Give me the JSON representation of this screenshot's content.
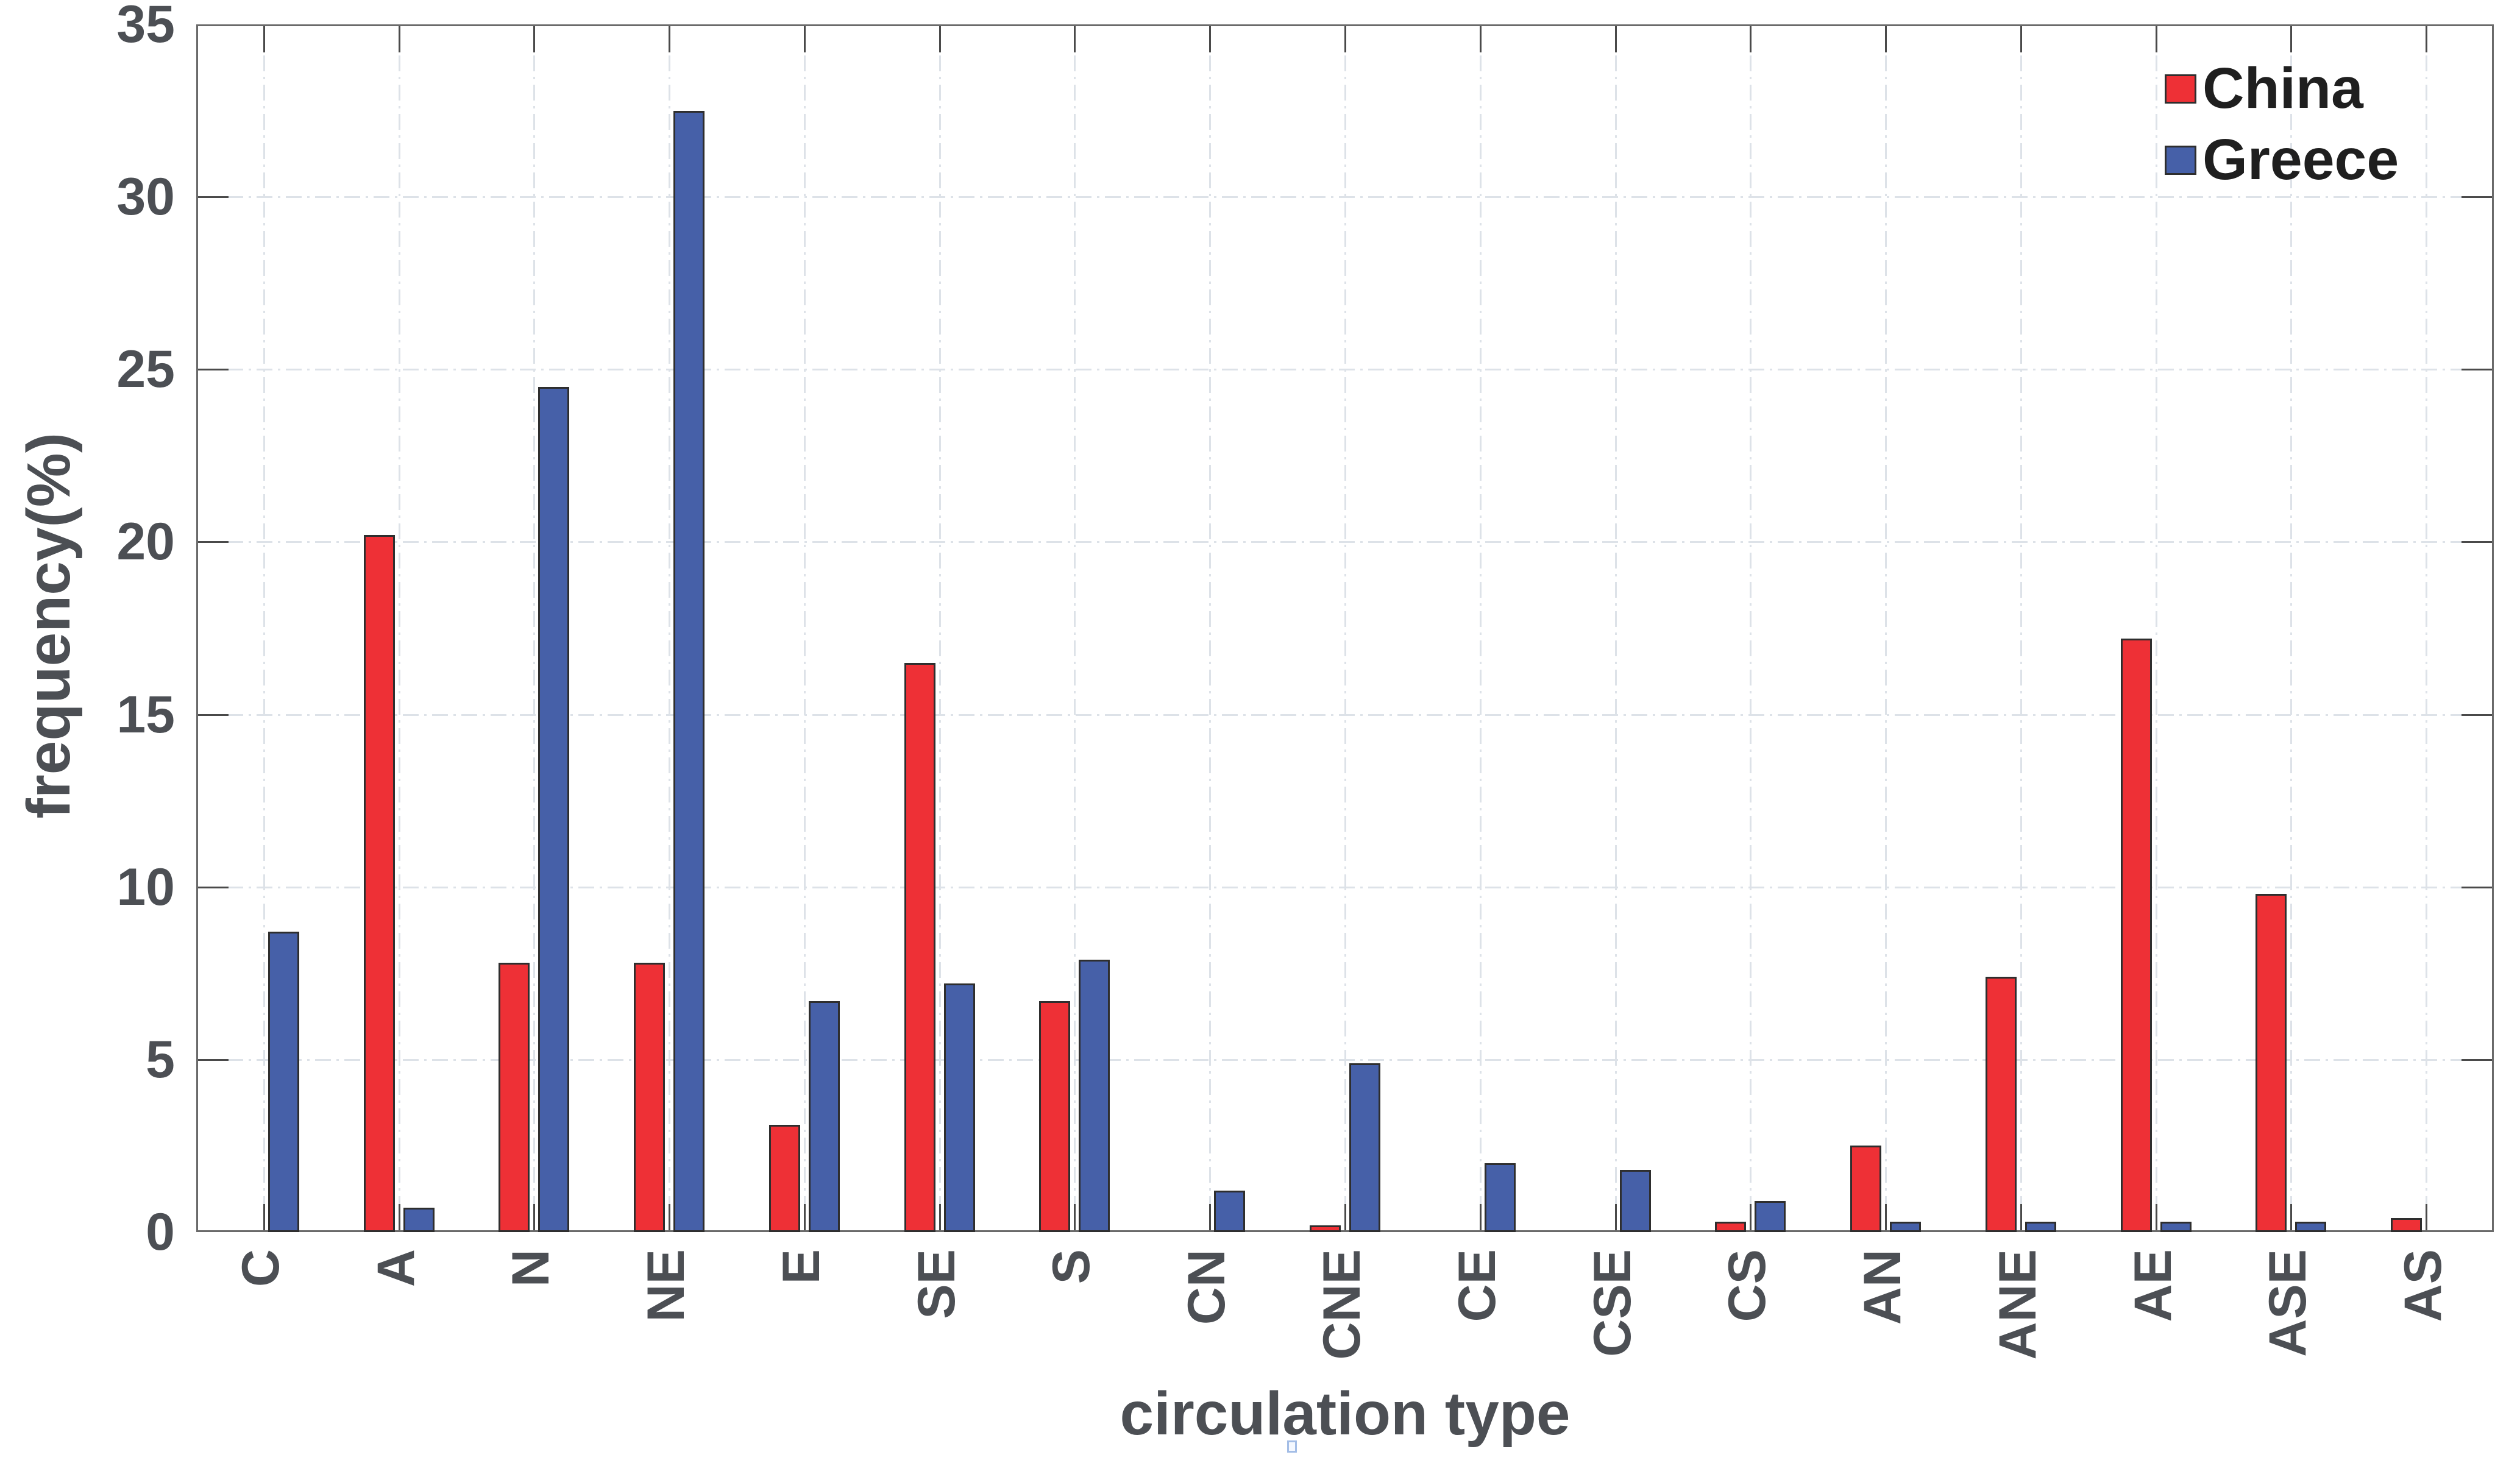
{
  "page": {
    "background": "#ffffff"
  },
  "chart_data": {
    "type": "bar",
    "title": "",
    "xlabel": "circulation type",
    "ylabel": "frequency(%)",
    "ylim": [
      0,
      35
    ],
    "yticks": [
      0,
      5,
      10,
      15,
      20,
      25,
      30,
      35
    ],
    "grid": "dash-dot gridlines, horizontal at each ytick and vertical at each category",
    "legend_position": "top-right inside plot, no box",
    "categories": [
      "C",
      "A",
      "N",
      "NE",
      "E",
      "SE",
      "S",
      "CN",
      "CNE",
      "CE",
      "CSE",
      "CS",
      "AN",
      "ANE",
      "AE",
      "ASE",
      "AS"
    ],
    "series": [
      {
        "name": "China",
        "color": "#ee3036",
        "values": [
          0,
          20.2,
          7.8,
          7.8,
          3.1,
          16.5,
          6.7,
          0,
          0.2,
          0,
          0,
          0.3,
          2.5,
          7.4,
          17.2,
          9.8,
          0.4
        ]
      },
      {
        "name": "Greece",
        "color": "#4660a8",
        "values": [
          8.7,
          0.7,
          24.5,
          32.5,
          6.7,
          7.2,
          7.9,
          1.2,
          4.9,
          2.0,
          1.8,
          0.9,
          0.3,
          0.3,
          0.3,
          0.3,
          0
        ]
      }
    ],
    "colors": {
      "bar_edge": "#2e2e2e",
      "axis_box": "#6a6a6a",
      "grid": "#dde2e8",
      "tick_text": "#4c4f54",
      "legend_text": "#1f1f1f"
    },
    "artifact": {
      "description": "tiny light-blue square glitch below the x-axis title",
      "color": "#a3bde6"
    }
  }
}
